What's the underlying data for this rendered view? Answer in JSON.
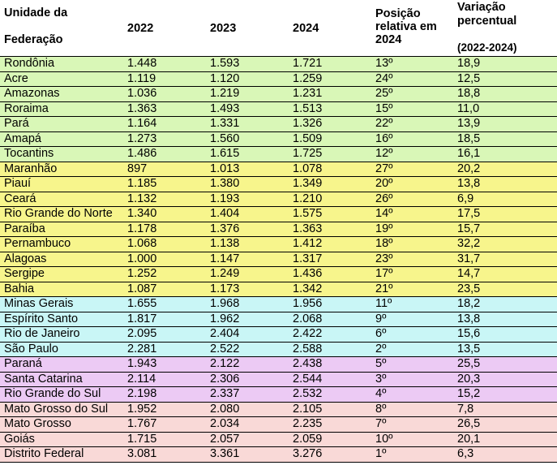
{
  "table": {
    "headers": {
      "uf_line1": "Unidade da",
      "uf_line2": "Federação",
      "y2022": "2022",
      "y2023": "2023",
      "y2024": "2024",
      "pos_line1": "Posição",
      "pos_line2": "relativa em",
      "pos_line3": "2024",
      "var_line1": "Variação",
      "var_line2": "percentual",
      "var_line3": "(2022-2024)"
    },
    "region_colors": {
      "norte": "#d9f7b7",
      "nordeste": "#f7f58c",
      "sudeste": "#c9f6f6",
      "sul": "#eccaf4",
      "centro_oeste": "#f9d9d7"
    },
    "rows": [
      {
        "region": "norte",
        "uf": "Rondônia",
        "v2022": "1.448",
        "v2023": "1.593",
        "v2024": "1.721",
        "pos": "13º",
        "var": "18,9"
      },
      {
        "region": "norte",
        "uf": "Acre",
        "v2022": "1.119",
        "v2023": "1.120",
        "v2024": "1.259",
        "pos": "24º",
        "var": "12,5"
      },
      {
        "region": "norte",
        "uf": "Amazonas",
        "v2022": "1.036",
        "v2023": "1.219",
        "v2024": "1.231",
        "pos": "25º",
        "var": "18,8"
      },
      {
        "region": "norte",
        "uf": "Roraima",
        "v2022": "1.363",
        "v2023": "1.493",
        "v2024": "1.513",
        "pos": "15º",
        "var": "11,0"
      },
      {
        "region": "norte",
        "uf": "Pará",
        "v2022": "1.164",
        "v2023": "1.331",
        "v2024": "1.326",
        "pos": "22º",
        "var": "13,9"
      },
      {
        "region": "norte",
        "uf": "Amapá",
        "v2022": "1.273",
        "v2023": "1.560",
        "v2024": "1.509",
        "pos": "16º",
        "var": "18,5"
      },
      {
        "region": "norte",
        "uf": "Tocantins",
        "v2022": "1.486",
        "v2023": "1.615",
        "v2024": "1.725",
        "pos": "12º",
        "var": "16,1"
      },
      {
        "region": "nordeste",
        "uf": "Maranhão",
        "v2022": "897",
        "v2023": "1.013",
        "v2024": "1.078",
        "pos": "27º",
        "var": "20,2"
      },
      {
        "region": "nordeste",
        "uf": "Piauí",
        "v2022": "1.185",
        "v2023": "1.380",
        "v2024": "1.349",
        "pos": "20º",
        "var": "13,8"
      },
      {
        "region": "nordeste",
        "uf": "Ceará",
        "v2022": "1.132",
        "v2023": "1.193",
        "v2024": "1.210",
        "pos": "26º",
        "var": "6,9"
      },
      {
        "region": "nordeste",
        "uf": "Rio Grande do Norte",
        "v2022": "1.340",
        "v2023": "1.404",
        "v2024": "1.575",
        "pos": "14º",
        "var": "17,5"
      },
      {
        "region": "nordeste",
        "uf": "Paraíba",
        "v2022": "1.178",
        "v2023": "1.376",
        "v2024": "1.363",
        "pos": "19º",
        "var": "15,7"
      },
      {
        "region": "nordeste",
        "uf": "Pernambuco",
        "v2022": "1.068",
        "v2023": "1.138",
        "v2024": "1.412",
        "pos": "18º",
        "var": "32,2"
      },
      {
        "region": "nordeste",
        "uf": "Alagoas",
        "v2022": "1.000",
        "v2023": "1.147",
        "v2024": "1.317",
        "pos": "23º",
        "var": "31,7"
      },
      {
        "region": "nordeste",
        "uf": "Sergipe",
        "v2022": "1.252",
        "v2023": "1.249",
        "v2024": "1.436",
        "pos": "17º",
        "var": "14,7"
      },
      {
        "region": "nordeste",
        "uf": "Bahia",
        "v2022": "1.087",
        "v2023": "1.173",
        "v2024": "1.342",
        "pos": "21º",
        "var": "23,5"
      },
      {
        "region": "sudeste",
        "uf": "Minas Gerais",
        "v2022": "1.655",
        "v2023": "1.968",
        "v2024": "1.956",
        "pos": "11º",
        "var": "18,2"
      },
      {
        "region": "sudeste",
        "uf": "Espírito Santo",
        "v2022": "1.817",
        "v2023": "1.962",
        "v2024": "2.068",
        "pos": "9º",
        "var": "13,8"
      },
      {
        "region": "sudeste",
        "uf": "Rio de Janeiro",
        "v2022": "2.095",
        "v2023": "2.404",
        "v2024": "2.422",
        "pos": "6º",
        "var": "15,6"
      },
      {
        "region": "sudeste",
        "uf": "São Paulo",
        "v2022": "2.281",
        "v2023": "2.522",
        "v2024": "2.588",
        "pos": "2º",
        "var": "13,5"
      },
      {
        "region": "sul",
        "uf": "Paraná",
        "v2022": "1.943",
        "v2023": "2.122",
        "v2024": "2.438",
        "pos": "5º",
        "var": "25,5"
      },
      {
        "region": "sul",
        "uf": "Santa Catarina",
        "v2022": "2.114",
        "v2023": "2.306",
        "v2024": "2.544",
        "pos": "3º",
        "var": "20,3"
      },
      {
        "region": "sul",
        "uf": "Rio Grande do Sul",
        "v2022": "2.198",
        "v2023": "2.337",
        "v2024": "2.532",
        "pos": "4º",
        "var": "15,2"
      },
      {
        "region": "centro_oeste",
        "uf": "Mato Grosso do Sul",
        "v2022": "1.952",
        "v2023": "2.080",
        "v2024": "2.105",
        "pos": "8º",
        "var": "7,8"
      },
      {
        "region": "centro_oeste",
        "uf": "Mato Grosso",
        "v2022": "1.767",
        "v2023": "2.034",
        "v2024": "2.235",
        "pos": "7º",
        "var": "26,5"
      },
      {
        "region": "centro_oeste",
        "uf": "Goiás",
        "v2022": "1.715",
        "v2023": "2.057",
        "v2024": "2.059",
        "pos": "10º",
        "var": "20,1"
      },
      {
        "region": "centro_oeste",
        "uf": "Distrito Federal",
        "v2022": "3.081",
        "v2023": "3.361",
        "v2024": "3.276",
        "pos": "1º",
        "var": "6,3"
      }
    ]
  }
}
